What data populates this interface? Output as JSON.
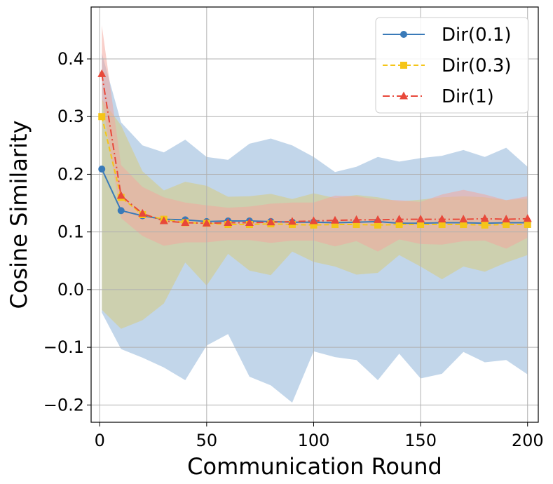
{
  "chart_data": {
    "type": "line",
    "title": "",
    "xlabel": "Communication Round",
    "ylabel": "Cosine Similarity",
    "xlim": [
      -4,
      205
    ],
    "ylim": [
      -0.23,
      0.49
    ],
    "grid": true,
    "legend_position": "top-right",
    "xticks": [
      0,
      50,
      100,
      150,
      200
    ],
    "xtick_labels": [
      "0",
      "50",
      "100",
      "150",
      "200"
    ],
    "yticks": [
      -0.2,
      -0.1,
      0.0,
      0.1,
      0.2,
      0.3,
      0.4
    ],
    "ytick_labels": [
      "−0.2",
      "−0.1",
      "0.0",
      "0.1",
      "0.2",
      "0.3",
      "0.4"
    ],
    "x": [
      1,
      10,
      20,
      30,
      40,
      50,
      60,
      70,
      80,
      90,
      100,
      110,
      120,
      130,
      140,
      150,
      160,
      170,
      180,
      190,
      200
    ],
    "series": [
      {
        "name": "Dir(0.1)",
        "color": "#3a7ab8",
        "band_color": "#8fb4d9",
        "marker": "circle",
        "linestyle": "solid",
        "values": [
          0.209,
          0.137,
          0.128,
          0.122,
          0.121,
          0.118,
          0.119,
          0.119,
          0.118,
          0.117,
          0.117,
          0.116,
          0.117,
          0.118,
          0.115,
          0.115,
          0.116,
          0.116,
          0.115,
          0.116,
          0.116
        ],
        "upper": [
          0.41,
          0.29,
          0.25,
          0.238,
          0.26,
          0.23,
          0.225,
          0.253,
          0.262,
          0.25,
          0.23,
          0.204,
          0.213,
          0.23,
          0.222,
          0.228,
          0.232,
          0.242,
          0.23,
          0.246,
          0.213
        ],
        "lower": [
          -0.04,
          -0.103,
          -0.118,
          -0.135,
          -0.157,
          -0.097,
          -0.077,
          -0.151,
          -0.166,
          -0.196,
          -0.107,
          -0.117,
          -0.122,
          -0.157,
          -0.111,
          -0.154,
          -0.146,
          -0.108,
          -0.126,
          -0.122,
          -0.147
        ]
      },
      {
        "name": "Dir(0.3)",
        "color": "#f5c518",
        "band_color": "#d7cc7d",
        "marker": "square",
        "linestyle": "dashed",
        "values": [
          0.3,
          0.16,
          0.13,
          0.122,
          0.116,
          0.115,
          0.113,
          0.113,
          0.114,
          0.113,
          0.112,
          0.113,
          0.113,
          0.112,
          0.113,
          0.113,
          0.113,
          0.113,
          0.112,
          0.113,
          0.113
        ],
        "upper": [
          0.33,
          0.285,
          0.205,
          0.172,
          0.187,
          0.18,
          0.161,
          0.162,
          0.166,
          0.157,
          0.167,
          0.159,
          0.164,
          0.16,
          0.153,
          0.156,
          0.16,
          0.162,
          0.16,
          0.155,
          0.158
        ],
        "lower": [
          -0.035,
          -0.068,
          -0.053,
          -0.024,
          0.047,
          0.007,
          0.062,
          0.033,
          0.025,
          0.066,
          0.048,
          0.04,
          0.026,
          0.029,
          0.06,
          0.04,
          0.018,
          0.04,
          0.031,
          0.047,
          0.06
        ]
      },
      {
        "name": "Dir(1)",
        "color": "#e8483a",
        "band_color": "#f2a79f",
        "marker": "triangle",
        "linestyle": "dashdot",
        "values": [
          0.374,
          0.163,
          0.132,
          0.119,
          0.116,
          0.115,
          0.116,
          0.116,
          0.117,
          0.118,
          0.119,
          0.12,
          0.121,
          0.121,
          0.122,
          0.122,
          0.122,
          0.122,
          0.123,
          0.122,
          0.123
        ],
        "upper": [
          0.458,
          0.216,
          0.178,
          0.16,
          0.151,
          0.146,
          0.142,
          0.144,
          0.149,
          0.151,
          0.151,
          0.163,
          0.162,
          0.156,
          0.155,
          0.152,
          0.165,
          0.173,
          0.165,
          0.155,
          0.162
        ],
        "lower": [
          0.33,
          0.124,
          0.093,
          0.076,
          0.082,
          0.082,
          0.086,
          0.086,
          0.081,
          0.085,
          0.085,
          0.075,
          0.084,
          0.066,
          0.087,
          0.079,
          0.078,
          0.084,
          0.085,
          0.071,
          0.09
        ]
      }
    ]
  }
}
